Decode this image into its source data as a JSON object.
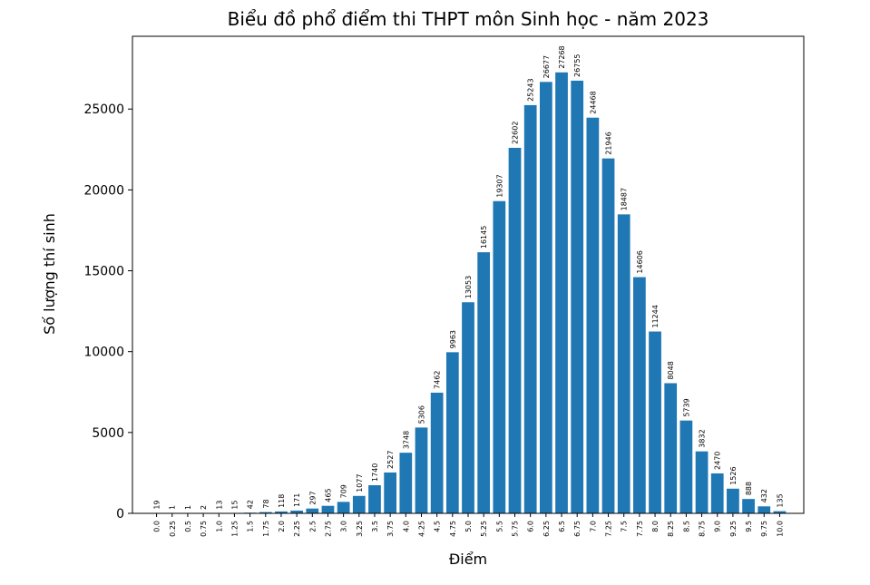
{
  "chart_data": {
    "type": "bar",
    "title": "Biểu đồ phổ điểm thi THPT môn Sinh học - năm 2023",
    "xlabel": "Điểm",
    "ylabel": "Số lượng thí sinh",
    "bar_color": "#1f77b4",
    "ylim": [
      0,
      29500
    ],
    "yticks": [
      0,
      5000,
      10000,
      15000,
      20000,
      25000
    ],
    "grid": false,
    "categories": [
      "0.0",
      "0.25",
      "0.5",
      "0.75",
      "1.0",
      "1.25",
      "1.5",
      "1.75",
      "2.0",
      "2.25",
      "2.5",
      "2.75",
      "3.0",
      "3.25",
      "3.5",
      "3.75",
      "4.0",
      "4.25",
      "4.5",
      "4.75",
      "5.0",
      "5.25",
      "5.5",
      "5.75",
      "6.0",
      "6.25",
      "6.5",
      "6.75",
      "7.0",
      "7.25",
      "7.5",
      "7.75",
      "8.0",
      "8.25",
      "8.5",
      "8.75",
      "9.0",
      "9.25",
      "9.5",
      "9.75",
      "10.0"
    ],
    "values": [
      19,
      1,
      1,
      2,
      13,
      15,
      42,
      78,
      118,
      171,
      297,
      465,
      709,
      1077,
      1740,
      2527,
      3748,
      5306,
      7462,
      9963,
      13053,
      16145,
      19307,
      22602,
      25243,
      26677,
      27268,
      26755,
      24468,
      21946,
      18487,
      14606,
      11244,
      8048,
      5739,
      3832,
      2470,
      1526,
      888,
      432,
      135
    ]
  }
}
